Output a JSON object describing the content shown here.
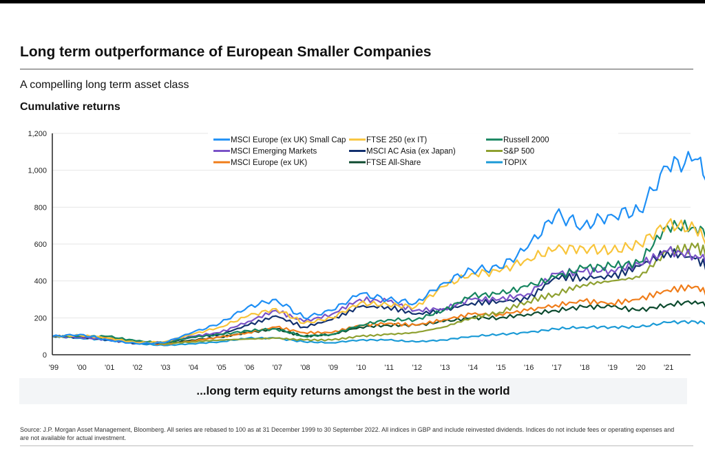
{
  "title": "Long term outperformance of European Smaller Companies",
  "subtitle": "A compelling long term asset class",
  "section": "Cumulative returns",
  "banner": "...long term equity returns amongst the best in the world",
  "source": "Source: J.P. Morgan Asset Management, Bloomberg. All series are rebased to 100 as at 31 December 1999  to 30 September 2022. All indices in GBP and include reinvested dividends. Indices do not include fees or operating expenses and are not available for actual investment.",
  "chart_data": {
    "type": "line",
    "ylim": [
      0,
      1200
    ],
    "yticks": [
      0,
      200,
      400,
      600,
      800,
      1000,
      1200
    ],
    "ytick_labels": [
      "0",
      "200",
      "400",
      "600",
      "800",
      "1,000",
      "1,200"
    ],
    "xtick_labels": [
      "'99",
      "'00",
      "'01",
      "'02",
      "'03",
      "'04",
      "'05",
      "'06",
      "'07",
      "'08",
      "'09",
      "'10",
      "'11",
      "'12",
      "'13",
      "'14",
      "'15",
      "'16",
      "'17",
      "'18",
      "'19",
      "'20",
      "'21"
    ],
    "grid": "horizontal",
    "legend": "top",
    "x": [
      1999,
      2000,
      2001,
      2002,
      2003,
      2004,
      2005,
      2006,
      2007,
      2008,
      2009,
      2010,
      2011,
      2012,
      2013,
      2014,
      2015,
      2016,
      2017,
      2018,
      2019,
      2020,
      2021,
      2022,
      2022.75
    ],
    "series": [
      {
        "name": "MSCI Europe (ex UK) Small Cap",
        "color": "#1e8ff5",
        "values": [
          100,
          110,
          80,
          60,
          65,
          120,
          170,
          260,
          300,
          200,
          240,
          330,
          300,
          280,
          390,
          460,
          470,
          580,
          760,
          700,
          760,
          780,
          1020,
          1060,
          910
        ]
      },
      {
        "name": "FTSE 250 (ex IT)",
        "color": "#f8c43a",
        "values": [
          100,
          105,
          90,
          65,
          70,
          110,
          150,
          210,
          250,
          170,
          200,
          280,
          270,
          260,
          370,
          440,
          450,
          520,
          570,
          580,
          560,
          600,
          710,
          680,
          570
        ]
      },
      {
        "name": "Russell 2000",
        "color": "#16855f",
        "values": [
          100,
          100,
          100,
          75,
          65,
          95,
          110,
          130,
          140,
          100,
          110,
          160,
          190,
          190,
          240,
          320,
          330,
          370,
          420,
          470,
          480,
          500,
          700,
          690,
          640
        ]
      },
      {
        "name": "MSCI Emerging Markets",
        "color": "#7a52c7",
        "values": [
          100,
          95,
          80,
          65,
          70,
          100,
          120,
          180,
          240,
          180,
          220,
          300,
          290,
          240,
          250,
          300,
          300,
          330,
          440,
          450,
          460,
          490,
          560,
          540,
          500
        ]
      },
      {
        "name": "MSCI AC Asia (ex Japan)",
        "color": "#12306e",
        "values": [
          100,
          95,
          80,
          60,
          65,
          95,
          110,
          160,
          210,
          150,
          190,
          260,
          260,
          220,
          240,
          280,
          290,
          300,
          420,
          420,
          420,
          480,
          560,
          520,
          450
        ]
      },
      {
        "name": "S&P 500",
        "color": "#8ea030",
        "values": [
          100,
          95,
          85,
          70,
          60,
          70,
          80,
          85,
          90,
          80,
          80,
          100,
          110,
          120,
          150,
          200,
          230,
          290,
          330,
          380,
          400,
          420,
          560,
          580,
          540
        ]
      },
      {
        "name": "MSCI Europe (ex UK)",
        "color": "#f07d1a",
        "values": [
          100,
          100,
          90,
          70,
          55,
          75,
          95,
          120,
          150,
          120,
          120,
          160,
          170,
          160,
          190,
          220,
          220,
          240,
          270,
          290,
          280,
          300,
          350,
          370,
          310
        ]
      },
      {
        "name": "FTSE All-Share",
        "color": "#0c4a2e",
        "values": [
          100,
          100,
          90,
          70,
          60,
          80,
          95,
          120,
          140,
          100,
          110,
          150,
          160,
          160,
          180,
          200,
          200,
          220,
          240,
          260,
          260,
          240,
          270,
          290,
          255
        ]
      },
      {
        "name": "TOPIX",
        "color": "#1a9ad6",
        "values": [
          100,
          90,
          80,
          60,
          50,
          60,
          70,
          90,
          90,
          70,
          65,
          80,
          80,
          70,
          80,
          100,
          110,
          120,
          140,
          150,
          150,
          150,
          175,
          180,
          165
        ]
      }
    ]
  }
}
